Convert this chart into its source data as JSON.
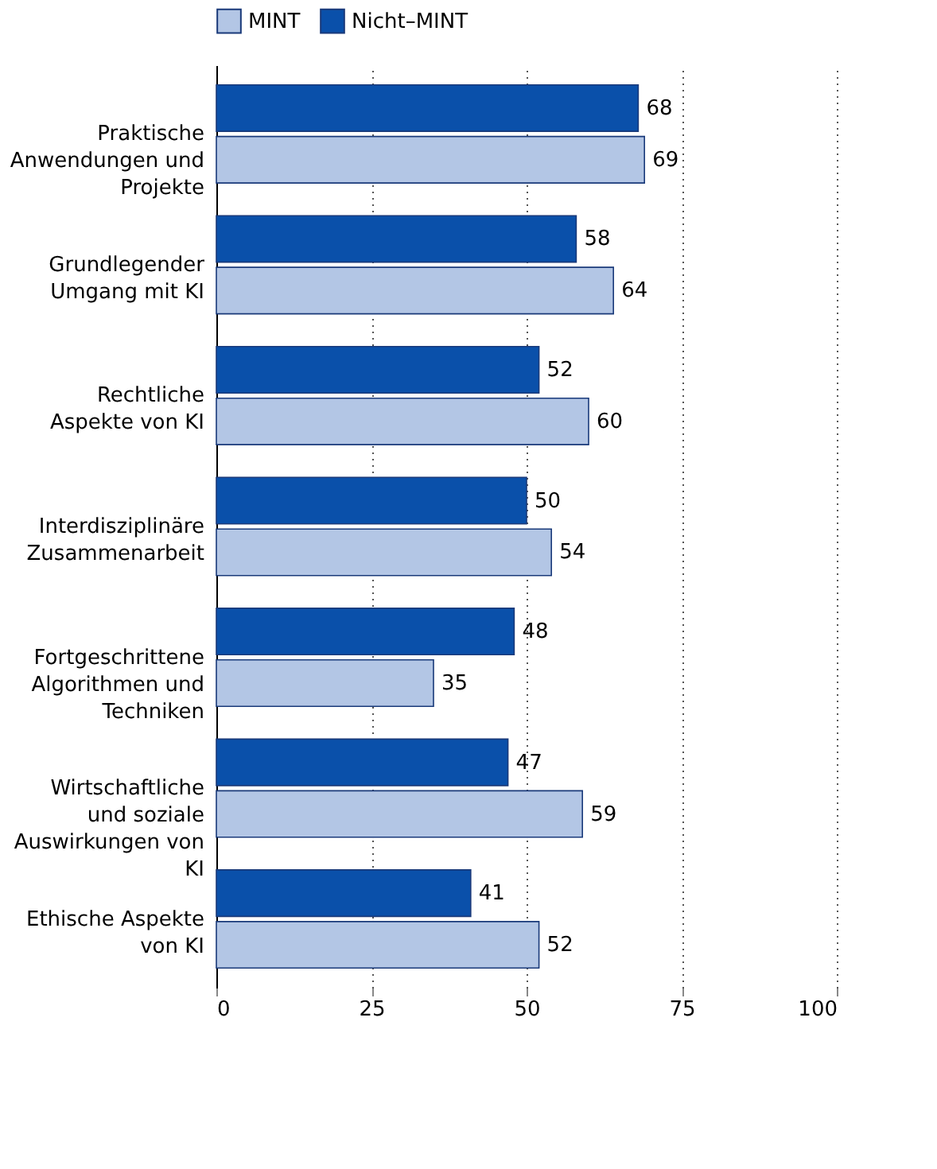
{
  "chart_data": {
    "type": "bar",
    "orientation": "horizontal",
    "categories": [
      "Praktische Anwendungen und Projekte",
      "Grundlegender Umgang mit KI",
      "Rechtliche Aspekte von KI",
      "Interdisziplinäre Zusammenarbeit",
      "Fortgeschrittene Algorithmen und Techniken",
      "Wirtschaftliche und soziale Auswirkungen von KI",
      "Ethische Aspekte von KI"
    ],
    "series": [
      {
        "name": "MINT",
        "color": "#b3c6e5",
        "values": [
          69,
          64,
          60,
          54,
          35,
          59,
          52
        ]
      },
      {
        "name": "Nicht–MINT",
        "color": "#0a50aa",
        "values": [
          68,
          58,
          52,
          50,
          48,
          47,
          41
        ]
      }
    ],
    "xlim": [
      0,
      100
    ],
    "xticks": [
      0,
      25,
      50,
      75,
      100
    ],
    "grid": "x",
    "legend": "top",
    "data_labels": true
  }
}
